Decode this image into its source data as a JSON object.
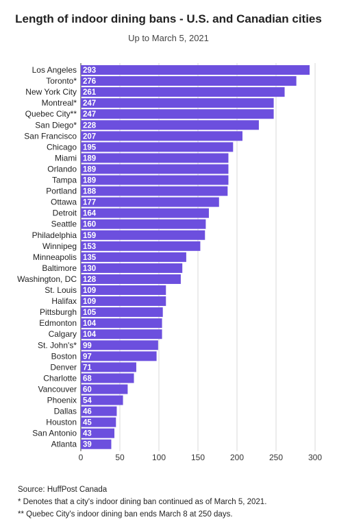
{
  "chart_data": {
    "type": "bar",
    "orientation": "horizontal",
    "title": "Length of indoor dining bans - U.S. and Canadian cities",
    "subtitle": "Up to March 5, 2021",
    "categories": [
      "Los Angeles",
      "Toronto*",
      "New York City",
      "Montreal*",
      "Quebec City**",
      "San Diego*",
      "San Francisco",
      "Chicago",
      "Miami",
      "Orlando",
      "Tampa",
      "Portland",
      "Ottawa",
      "Detroit",
      "Seattle",
      "Philadelphia",
      "Winnipeg",
      "Minneapolis",
      "Baltimore",
      "Washington, DC",
      "St. Louis",
      "Halifax",
      "Pittsburgh",
      "Edmonton",
      "Calgary",
      "St. John's*",
      "Boston",
      "Denver",
      "Charlotte",
      "Vancouver",
      "Phoenix",
      "Dallas",
      "Houston",
      "San Antonio",
      "Atlanta"
    ],
    "values": [
      293,
      276,
      261,
      247,
      247,
      228,
      207,
      195,
      189,
      189,
      189,
      188,
      177,
      164,
      160,
      159,
      153,
      135,
      130,
      128,
      109,
      109,
      105,
      104,
      104,
      99,
      97,
      71,
      68,
      60,
      54,
      46,
      45,
      43,
      39
    ],
    "xlim": [
      0,
      300
    ],
    "xticks": [
      "0",
      "50",
      "100",
      "150",
      "200",
      "250",
      "300"
    ],
    "bar_color": "#6c4fde",
    "label_color": "#ffffff",
    "grid": true
  },
  "footer": {
    "source": "Source: HuffPost Canada",
    "note1": "* Denotes that a city's indoor dining ban continued as of March 5, 2021.",
    "note2": "** Quebec City's indoor dining ban ends March 8 at 250 days."
  }
}
